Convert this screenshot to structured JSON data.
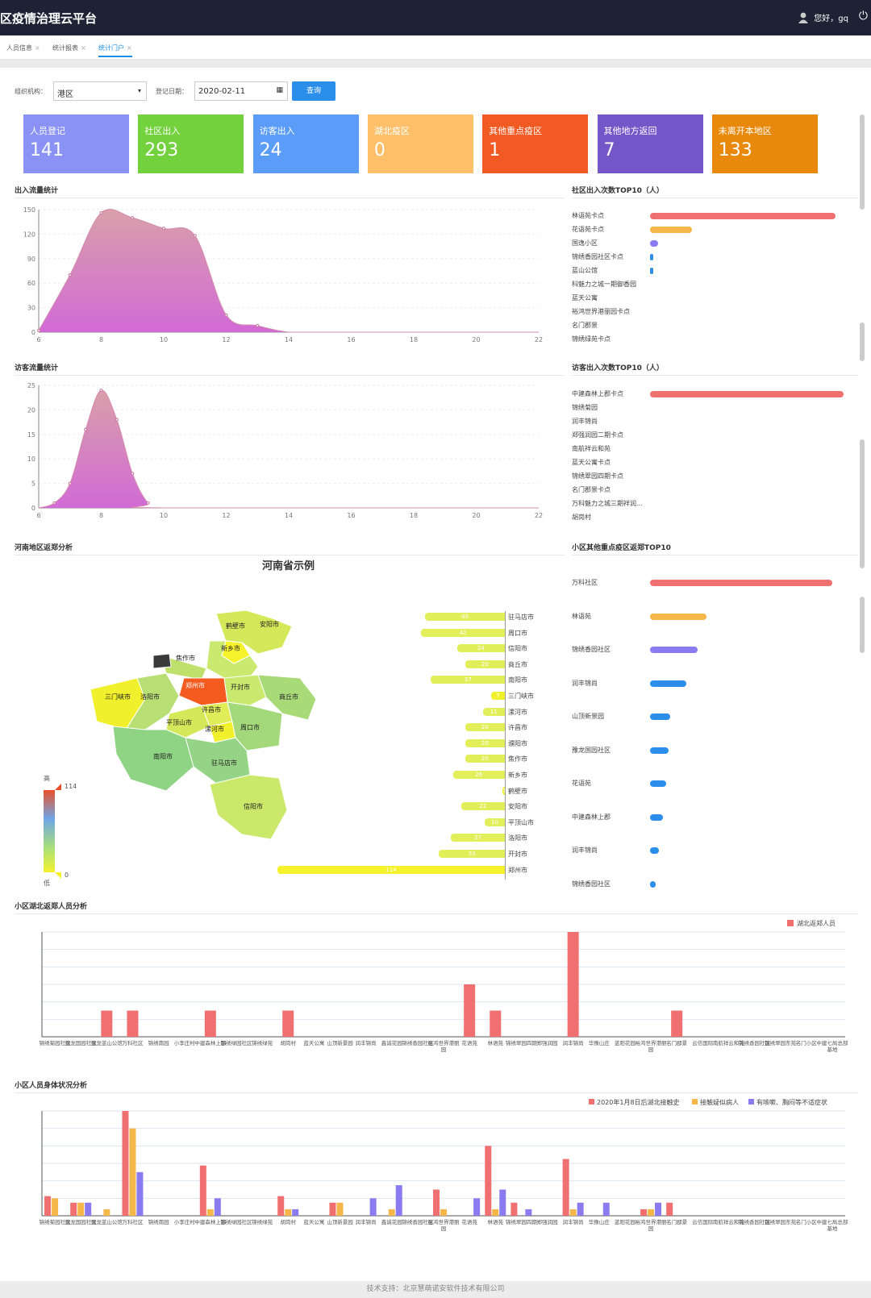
{
  "header": {
    "title": "区疫情治理云平台",
    "user": "您好，gq"
  },
  "tabs": [
    {
      "label": "人员信息"
    },
    {
      "label": "统计报表"
    },
    {
      "label": "统计门户"
    }
  ],
  "filter": {
    "org_label": "组织机构：",
    "org_value": "港区",
    "date_label": "登记日期：",
    "date_value": "2020-02-11",
    "query_label": "查询"
  },
  "cards": [
    {
      "label": "人员登记",
      "value": "141",
      "color": "#8a93f5"
    },
    {
      "label": "社区出入",
      "value": "293",
      "color": "#73d13d"
    },
    {
      "label": "访客出入",
      "value": "24",
      "color": "#5b9cf8"
    },
    {
      "label": "湖北疫区",
      "value": "0",
      "color": "#ffc069"
    },
    {
      "label": "其他重点疫区",
      "value": "1",
      "color": "#f25a24"
    },
    {
      "label": "其他地方返回",
      "value": "7",
      "color": "#7556c9"
    },
    {
      "label": "未离开本地区",
      "value": "133",
      "color": "#e8890c"
    }
  ],
  "sections": {
    "flow": "出入流量统计",
    "visitor_flow": "访客流量统计",
    "community_top10": "社区出入次数TOP10（人）",
    "visitor_top10": "访客出入次数TOP10（人）",
    "henan": "河南地区返郑分析",
    "henan_title": "河南省示例",
    "key_area_top10": "小区其他重点疫区返郑TOP10",
    "hubei": "小区湖北返郑人员分析",
    "health": "小区人员身体状况分析"
  },
  "footer": "技术支持：北京慧萌诺安软件技术有限公司",
  "chart_data": [
    {
      "type": "area",
      "name": "flow",
      "x": [
        6,
        7,
        8,
        9,
        10,
        11,
        12,
        13,
        14,
        15,
        16,
        17,
        18,
        19,
        20,
        21,
        22
      ],
      "values": [
        2,
        70,
        146,
        140,
        127,
        118,
        21,
        8,
        0,
        0,
        0,
        0,
        0,
        0,
        0,
        0,
        0
      ],
      "xlim": [
        6,
        22
      ],
      "ylim": [
        0,
        150
      ],
      "yticks": [
        0,
        30,
        60,
        90,
        120,
        150
      ],
      "xticks": [
        6,
        8,
        10,
        12,
        14,
        16,
        18,
        20,
        22
      ]
    },
    {
      "type": "area",
      "name": "visitor_flow",
      "x": [
        6,
        6.5,
        7,
        7.5,
        8,
        8.5,
        9,
        9.5,
        10,
        22
      ],
      "values": [
        0,
        1,
        5,
        16,
        24,
        18,
        7,
        1,
        0,
        0
      ],
      "xlim": [
        6,
        22
      ],
      "ylim": [
        0,
        25
      ],
      "yticks": [
        0,
        5,
        10,
        15,
        20,
        25
      ],
      "xticks": [
        6,
        8,
        10,
        12,
        14,
        16,
        18,
        20,
        22
      ]
    },
    {
      "type": "bar",
      "name": "community_top10",
      "categories": [
        "林语苑卡点",
        "花语苑卡点",
        "国逸小区",
        "锦绣香园社区卡点",
        "蓝山公馆",
        "科魅力之城一期御香园",
        "蓝天公寓",
        "裕鸿世界港丽园卡点",
        "名门郡景",
        "锦绣绿苑卡点"
      ],
      "values": [
        230,
        52,
        10,
        2,
        1,
        0,
        0,
        0,
        0,
        0
      ],
      "colors": [
        "#f07072",
        "#f5b74a",
        "#8a7cf0",
        "#2b8eea",
        "#2b8eea",
        "#2b8eea",
        "#2b8eea",
        "#2b8eea",
        "#2b8eea",
        "#2b8eea"
      ]
    },
    {
      "type": "bar",
      "name": "visitor_top10",
      "categories": [
        "中建森林上郡卡点",
        "锦绣菊园",
        "润丰锦尚",
        "郑强润园二期卡点",
        "南航祥云和苑",
        "蓝天公寓卡点",
        "锦绣翠园四期卡点",
        "名门郡景卡点",
        "万科魅力之城三期祥润...",
        "胡岗村"
      ],
      "values": [
        24,
        0,
        0,
        0,
        0,
        0,
        0,
        0,
        0,
        0
      ],
      "colors": [
        "#f07072"
      ]
    },
    {
      "type": "bar",
      "name": "henan_cities",
      "categories": [
        "驻马店市",
        "周口市",
        "信阳市",
        "商丘市",
        "南阳市",
        "三门峡市",
        "漯河市",
        "许昌市",
        "濮阳市",
        "焦作市",
        "新乡市",
        "鹤壁市",
        "安阳市",
        "平顶山市",
        "洛阳市",
        "开封市",
        "郑州市"
      ],
      "values": [
        40,
        42,
        24,
        20,
        37,
        7,
        11,
        20,
        20,
        20,
        26,
        1,
        22,
        10,
        27,
        33,
        114
      ],
      "max": 114,
      "labels_text": [
        "40",
        "42",
        "24",
        "20",
        "37",
        "7",
        "11",
        "20",
        "20",
        "20",
        "26",
        "1",
        "22",
        "10",
        "27",
        "33",
        "114"
      ]
    },
    {
      "type": "bar",
      "name": "key_area_top10",
      "categories": [
        "万科社区",
        "林语苑",
        "锦绣香园社区",
        "润丰锦尚",
        "山顶新景园",
        "豫龙国园社区",
        "花语苑",
        "中建森林上郡",
        "润丰锦尚",
        "锦绣香园社区"
      ],
      "values": [
        100,
        31,
        26,
        20,
        11,
        10,
        9,
        7,
        5,
        3
      ],
      "colors": [
        "#f07072",
        "#f5b74a",
        "#8a7cf0",
        "#2b8eea",
        "#2b8eea",
        "#2b8eea",
        "#2b8eea",
        "#2b8eea",
        "#2b8eea",
        "#2b8eea"
      ]
    },
    {
      "type": "bar",
      "name": "hubei",
      "legend": "湖北返郑人员",
      "categories": [
        "锦绣菊园社区",
        "豫龙国园社区",
        "豫龙蓝山公馆",
        "万科社区",
        "锦绣南园",
        "小李庄村",
        "中建森林上郡",
        "锦绣绿园社区",
        "锦绣绿苑",
        "胡岗村",
        "蓝天公寓",
        "山顶新景园",
        "润丰锦尚",
        "鑫诚花园",
        "锦绣香园社区",
        "裕鸿世界港丽园",
        "花语苑",
        "林语苑",
        "锦绣翠园四期",
        "郑强润园",
        "润丰锦尚",
        "华豫山庄",
        "蓝阳花园",
        "裕鸿世界港丽园",
        "名门郡景",
        "云信国际",
        "南航祥云和苑",
        "锦绣香园社区",
        "锦绣翠园东苑",
        "名门小区",
        "中建七局总部基地"
      ],
      "values": [
        0,
        0,
        1,
        1,
        0,
        0,
        1,
        0,
        0,
        1,
        0,
        0,
        0,
        0,
        0,
        0,
        2,
        1,
        0,
        0,
        4,
        0,
        0,
        0,
        1,
        0,
        0,
        0,
        0,
        0,
        0
      ],
      "ylim": [
        0,
        4
      ]
    },
    {
      "type": "bar",
      "name": "health",
      "categories": [
        "锦绣菊园社区",
        "豫龙国园社区",
        "豫龙蓝山公馆",
        "万科社区",
        "锦绣南园",
        "小李庄村",
        "中建森林上郡",
        "锦绣绿园社区",
        "锦绣绿苑",
        "胡岗村",
        "蓝天公寓",
        "山顶新景园",
        "润丰锦尚",
        "鑫诚花园",
        "锦绣香园社区",
        "裕鸿世界港丽园",
        "花语苑",
        "林语苑",
        "锦绣翠园四期",
        "郑强润园",
        "润丰锦尚",
        "华豫山庄",
        "蓝阳花园",
        "裕鸿世界港丽园",
        "名门郡景",
        "云信国际",
        "南航祥云和苑",
        "锦绣香园社区",
        "锦绣翠园东苑",
        "名门小区",
        "中建七局总部基地"
      ],
      "series": [
        {
          "name": "2020年1月8日后湖北接触史",
          "color": "#f07072",
          "values": [
            9,
            6,
            0,
            48,
            0,
            0,
            23,
            0,
            0,
            9,
            0,
            6,
            0,
            0,
            0,
            12,
            0,
            32,
            6,
            0,
            26,
            0,
            0,
            3,
            6,
            0,
            0,
            0,
            0,
            0,
            0
          ]
        },
        {
          "name": "接触疑似病人",
          "color": "#f5b74a",
          "values": [
            8,
            6,
            3,
            40,
            0,
            0,
            3,
            0,
            0,
            3,
            0,
            6,
            0,
            3,
            0,
            3,
            0,
            3,
            0,
            0,
            3,
            0,
            0,
            3,
            0,
            0,
            0,
            0,
            0,
            0,
            0
          ]
        },
        {
          "name": "有咳嗽、胸闷等不适症状",
          "color": "#8a7cf0",
          "values": [
            0,
            6,
            0,
            20,
            0,
            0,
            8,
            0,
            0,
            3,
            0,
            0,
            8,
            14,
            0,
            0,
            8,
            12,
            3,
            0,
            6,
            6,
            0,
            6,
            0,
            0,
            0,
            0,
            0,
            0,
            0
          ]
        }
      ],
      "ylim": [
        0,
        48
      ]
    }
  ]
}
